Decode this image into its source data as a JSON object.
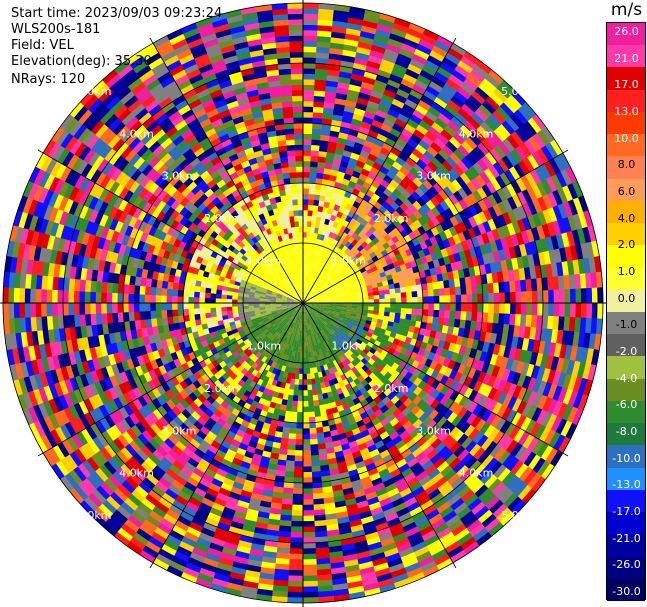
{
  "header": {
    "start_time": "Start time: 2023/09/03 09:23:24",
    "instrument": "WLS200s-181",
    "field": "Field: VEL",
    "elevation": "Elevation(deg): 35.30",
    "nrays": "NRays: 120"
  },
  "colorbar": {
    "title": "m/s",
    "ticks": [
      "26.0",
      "21.0",
      "17.0",
      "13.0",
      "10.0",
      "8.0",
      "6.0",
      "4.0",
      "2.0",
      "1.0",
      "0.0",
      "-1.0",
      "-2.0",
      "-4.0",
      "-6.0",
      "-8.0",
      "-10.0",
      "-13.0",
      "-17.0",
      "-21.0",
      "-26.0",
      "-30.0"
    ],
    "colors": [
      "#f01fa0",
      "#ff3aa8",
      "#e00000",
      "#ff1f1f",
      "#ff3a00",
      "#ff6a20",
      "#ff8050",
      "#ff9c58",
      "#ffb000",
      "#ffd000",
      "#ffff00",
      "#ffff30",
      "#f0f0a0",
      "#808080",
      "#606060",
      "#a0c040",
      "#6b8e23",
      "#2e8b2e",
      "#1e7a3a",
      "#2f6fbf",
      "#1e90ff",
      "#1010ff",
      "#0000d0",
      "#0000a0",
      "#000080",
      "#000060"
    ]
  },
  "chart_data": {
    "type": "ppi",
    "field": "VEL",
    "units": "m/s",
    "nrays": 120,
    "elevation_deg": 35.3,
    "range_rings_km": [
      1.0,
      2.0,
      3.0,
      4.0,
      5.0
    ],
    "range_ring_labels": [
      "1.0km",
      "2.0km",
      "3.0km",
      "4.0km",
      "5.0km"
    ],
    "vmin": -30.0,
    "vmax": 26.0
  }
}
